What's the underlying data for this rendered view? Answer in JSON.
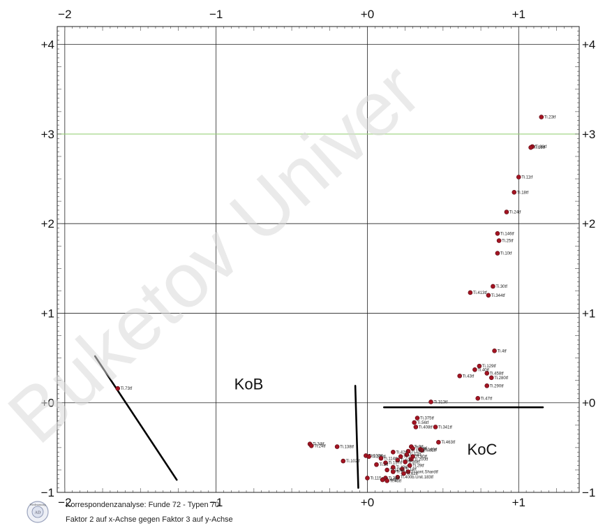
{
  "watermark": "Buketov Univer",
  "footer": {
    "line1": "Korrespondenzanalyse: Funde   72 - Typen   70",
    "line2": "Faktor  2 auf x-Achse gegen Faktor  3 auf y-Achse"
  },
  "logo": {
    "text": "Wiederanstieg",
    "inner": "AD"
  },
  "colors": {
    "point": "#a31422",
    "grid": "#222222",
    "highlight_grid": "#9ad17a",
    "axis_line": "#000000"
  },
  "chart_data": {
    "type": "scatter",
    "title": "",
    "xlabel": "",
    "ylabel": "",
    "xlim": [
      -2.05,
      1.4
    ],
    "ylim": [
      -1,
      4.2
    ],
    "x_ticks": [
      -2,
      -1,
      0,
      1
    ],
    "x_tick_labels": [
      "−2",
      "−1",
      "+0",
      "+1"
    ],
    "y_ticks": [
      4,
      3,
      2,
      1,
      0,
      -1
    ],
    "y_tick_labels": [
      "+4",
      "+3",
      "+2",
      "+1",
      "+0",
      "−1"
    ],
    "highlight_gridline_y": 3,
    "grid": true,
    "points": [
      {
        "x": 1.15,
        "y": 3.19,
        "label": "Ti.23tf"
      },
      {
        "x": 1.09,
        "y": 2.86,
        "label": "Ti.90tf"
      },
      {
        "x": 1.08,
        "y": 2.85,
        "label": "Ti.19tf"
      },
      {
        "x": 1.0,
        "y": 2.52,
        "label": "Ti.11tf"
      },
      {
        "x": 0.97,
        "y": 2.35,
        "label": "Ti.18tf"
      },
      {
        "x": 0.92,
        "y": 2.13,
        "label": "Ti.24tf"
      },
      {
        "x": 0.86,
        "y": 1.89,
        "label": "Ti.146tf"
      },
      {
        "x": 0.87,
        "y": 1.81,
        "label": "Ti.25tf"
      },
      {
        "x": 0.86,
        "y": 1.67,
        "label": "Ti.10tf"
      },
      {
        "x": 0.83,
        "y": 1.3,
        "label": "Ti.30tf"
      },
      {
        "x": 0.68,
        "y": 1.23,
        "label": "Ti.413tf"
      },
      {
        "x": 0.8,
        "y": 1.2,
        "label": "Ti.344tf"
      },
      {
        "x": 0.84,
        "y": 0.58,
        "label": "Ti.4tf"
      },
      {
        "x": 0.74,
        "y": 0.41,
        "label": "Ti.129tf"
      },
      {
        "x": 0.71,
        "y": 0.37,
        "label": "Ti.40tf"
      },
      {
        "x": 0.79,
        "y": 0.33,
        "label": "Ti.458tf"
      },
      {
        "x": 0.61,
        "y": 0.3,
        "label": "Ti.43tf"
      },
      {
        "x": 0.82,
        "y": 0.28,
        "label": "Ti.280tf"
      },
      {
        "x": 0.79,
        "y": 0.19,
        "label": "Ti.290tf"
      },
      {
        "x": -1.65,
        "y": 0.16,
        "label": "Ti.73tf"
      },
      {
        "x": 0.73,
        "y": 0.05,
        "label": "Ti.47tf"
      },
      {
        "x": 0.42,
        "y": 0.01,
        "label": "Ti.313tf"
      },
      {
        "x": 0.33,
        "y": -0.17,
        "label": "Ti.375tf"
      },
      {
        "x": 0.31,
        "y": -0.22,
        "label": "Ti.56tf"
      },
      {
        "x": 0.32,
        "y": -0.27,
        "label": "Ti.408tf"
      },
      {
        "x": 0.45,
        "y": -0.27,
        "label": "Ti.341tf"
      },
      {
        "x": 0.47,
        "y": -0.44,
        "label": "Ti.463tf"
      },
      {
        "x": -0.38,
        "y": -0.46,
        "label": "Ti.34tf"
      },
      {
        "x": -0.37,
        "y": -0.48,
        "label": "Ti.24tf"
      },
      {
        "x": -0.2,
        "y": -0.49,
        "label": "Ti.138tf"
      },
      {
        "x": 0.29,
        "y": -0.49,
        "label": "Ti.9tf"
      },
      {
        "x": 0.3,
        "y": -0.51,
        "label": "Ti.64tf"
      },
      {
        "x": 0.35,
        "y": -0.52,
        "label": "Ti.140tf"
      },
      {
        "x": 0.36,
        "y": -0.53,
        "label": "Ti.82tf"
      },
      {
        "x": 0.27,
        "y": -0.54,
        "label": "Ti.135tf"
      },
      {
        "x": 0.17,
        "y": -0.55,
        "label": "Ti.42tf"
      },
      {
        "x": 0.26,
        "y": -0.58,
        "label": "Ti.53tf"
      },
      {
        "x": -0.01,
        "y": -0.59,
        "label": "Ti.100tf"
      },
      {
        "x": 0.01,
        "y": -0.6,
        "label": "Ti.105tf"
      },
      {
        "x": 0.22,
        "y": -0.6,
        "label": "Ti.17tf"
      },
      {
        "x": 0.3,
        "y": -0.6,
        "label": "Ti.90tf"
      },
      {
        "x": 0.09,
        "y": -0.62,
        "label": "Ti.114tf"
      },
      {
        "x": 0.29,
        "y": -0.63,
        "label": "Ti.200tf"
      },
      {
        "x": 0.2,
        "y": -0.64,
        "label": "Ti.60tf"
      },
      {
        "x": -0.16,
        "y": -0.65,
        "label": "Ti.102tf"
      },
      {
        "x": 0.25,
        "y": -0.66,
        "label": "Ti.89tf"
      },
      {
        "x": 0.12,
        "y": -0.67,
        "label": "Ti.157tf"
      },
      {
        "x": 0.06,
        "y": -0.69,
        "label": "Ti.2tf"
      },
      {
        "x": 0.28,
        "y": -0.7,
        "label": "Ti.29tf"
      },
      {
        "x": 0.17,
        "y": -0.72,
        "label": "Ti.49tf"
      },
      {
        "x": 0.23,
        "y": -0.74,
        "label": "Ti.14tf"
      },
      {
        "x": 0.13,
        "y": -0.75,
        "label": "Ti.115tf"
      },
      {
        "x": 0.17,
        "y": -0.77,
        "label": "Ti.124tf"
      },
      {
        "x": 0.27,
        "y": -0.77,
        "label": "Ti.cont.Shardtf"
      },
      {
        "x": 0.24,
        "y": -0.79,
        "label": "Ti.62tf"
      },
      {
        "x": 0.2,
        "y": -0.83,
        "label": "Ti.400b.Unit.183tf"
      },
      {
        "x": 0.0,
        "y": -0.84,
        "label": "Ti.115altf"
      },
      {
        "x": 0.12,
        "y": -0.84,
        "label": "Ti.36tf"
      },
      {
        "x": 0.1,
        "y": -0.86,
        "label": "Ti.44tf"
      },
      {
        "x": 0.13,
        "y": -0.87,
        "label": "Ti.46tf"
      }
    ],
    "annotations": [
      {
        "text": "KoB",
        "x": -0.88,
        "y": 0.15
      },
      {
        "text": "KoC",
        "x": 0.66,
        "y": -0.58
      }
    ],
    "lines": [
      {
        "from": [
          -1.8,
          0.52
        ],
        "to": [
          -1.26,
          -0.86
        ]
      },
      {
        "from": [
          -0.08,
          0.19
        ],
        "to": [
          -0.06,
          -0.95
        ]
      },
      {
        "from": [
          0.11,
          -0.05
        ],
        "to": [
          1.16,
          -0.05
        ]
      }
    ]
  }
}
